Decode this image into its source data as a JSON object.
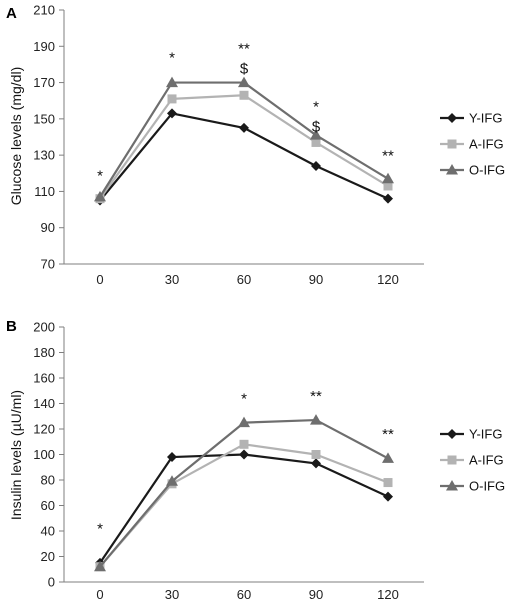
{
  "chart_data": [
    {
      "type": "line",
      "panel_label": "A",
      "ylabel": "Glucose levels (mg/dl)",
      "x": [
        0,
        30,
        60,
        90,
        120
      ],
      "x_tick_labels": [
        "0",
        "30",
        "60",
        "90",
        "120"
      ],
      "ylim": [
        70,
        210
      ],
      "y_ticks": [
        70,
        90,
        110,
        130,
        150,
        170,
        190,
        210
      ],
      "grid": false,
      "legend_position": "right",
      "series": [
        {
          "name": "Y-IFG",
          "values": [
            105,
            153,
            145,
            124,
            106
          ],
          "color": "#1a1a1a",
          "marker": "diamond"
        },
        {
          "name": "A-IFG",
          "values": [
            106,
            161,
            163,
            137,
            113
          ],
          "color": "#b3b3b3",
          "marker": "square"
        },
        {
          "name": "O-IFG",
          "values": [
            107,
            170,
            170,
            141,
            117
          ],
          "color": "#6e6e6e",
          "marker": "triangle"
        }
      ],
      "annotations": [
        {
          "x": 0,
          "y": 116,
          "text": "*"
        },
        {
          "x": 30,
          "y": 181,
          "text": "*"
        },
        {
          "x": 60,
          "y": 186,
          "text": "**"
        },
        {
          "x": 60,
          "y": 175,
          "text": "$"
        },
        {
          "x": 90,
          "y": 154,
          "text": "*"
        },
        {
          "x": 90,
          "y": 143,
          "text": "$"
        },
        {
          "x": 120,
          "y": 127,
          "text": "**"
        }
      ]
    },
    {
      "type": "line",
      "panel_label": "B",
      "ylabel": "Insulin levels (µU/ml)",
      "x": [
        0,
        30,
        60,
        90,
        120
      ],
      "x_tick_labels": [
        "0",
        "30",
        "60",
        "90",
        "120"
      ],
      "ylim": [
        0,
        200
      ],
      "y_ticks": [
        0,
        20,
        40,
        60,
        80,
        100,
        120,
        140,
        160,
        180,
        200
      ],
      "grid": false,
      "legend_position": "right",
      "series": [
        {
          "name": "Y-IFG",
          "values": [
            15,
            98,
            100,
            93,
            67
          ],
          "color": "#1a1a1a",
          "marker": "diamond"
        },
        {
          "name": "A-IFG",
          "values": [
            12,
            77,
            108,
            100,
            78
          ],
          "color": "#b3b3b3",
          "marker": "square"
        },
        {
          "name": "O-IFG",
          "values": [
            12,
            79,
            125,
            127,
            97
          ],
          "color": "#6e6e6e",
          "marker": "triangle"
        }
      ],
      "annotations": [
        {
          "x": 0,
          "y": 38,
          "text": "*"
        },
        {
          "x": 60,
          "y": 140,
          "text": "*"
        },
        {
          "x": 90,
          "y": 142,
          "text": "**"
        },
        {
          "x": 120,
          "y": 112,
          "text": "**"
        }
      ]
    }
  ]
}
